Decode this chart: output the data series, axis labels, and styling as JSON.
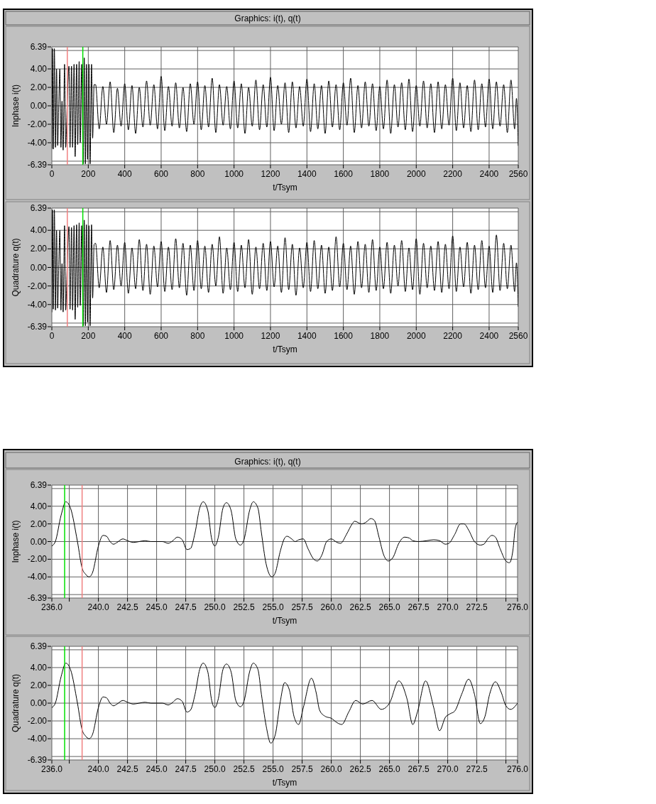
{
  "chart_data": [
    {
      "type": "line",
      "title": "Graphics: i(t), q(t)",
      "xlabel": "t/Tsym",
      "ylabel": "Inphase i(t)",
      "grid": true,
      "xlim": [
        0,
        2560
      ],
      "xticks": [
        0,
        200,
        400,
        600,
        800,
        1000,
        1200,
        1400,
        1600,
        1800,
        2000,
        2200,
        2400,
        2560
      ],
      "ylim": [
        -6.39,
        6.39
      ],
      "yticks": [
        {
          "value": -6.39,
          "label": "-6.39"
        },
        {
          "value": -6,
          "label": null
        },
        {
          "value": -4,
          "label": "-4.00"
        },
        {
          "value": -2,
          "label": "-2.00"
        },
        {
          "value": 0,
          "label": "0.00"
        },
        {
          "value": 2,
          "label": "2.00"
        },
        {
          "value": 4,
          "label": "4.00"
        },
        {
          "value": 6,
          "label": null
        },
        {
          "value": 6.39,
          "label": "6.39"
        }
      ],
      "ref_lines": [
        {
          "axis": "x",
          "value": 85,
          "color": "#f08080"
        },
        {
          "axis": "x",
          "value": 170,
          "color": "#00e000"
        }
      ],
      "x": [
        0,
        4,
        8,
        14,
        20,
        26,
        32,
        38,
        44,
        50,
        56,
        62,
        70,
        76,
        84,
        88,
        94,
        100,
        108,
        114,
        122,
        128,
        136,
        142,
        150,
        156,
        164,
        172,
        178,
        184,
        190,
        196,
        204,
        210,
        218,
        224,
        232,
        240,
        260,
        280,
        300,
        320,
        340,
        360,
        380,
        400,
        420,
        440,
        460,
        480,
        500,
        520,
        540,
        560,
        580,
        600,
        620,
        640,
        660,
        680,
        700,
        720,
        740,
        760,
        780,
        800,
        820,
        840,
        860,
        880,
        900,
        920,
        940,
        960,
        980,
        1000,
        1020,
        1040,
        1060,
        1080,
        1100,
        1120,
        1140,
        1160,
        1180,
        1200,
        1220,
        1240,
        1260,
        1280,
        1300,
        1320,
        1340,
        1360,
        1380,
        1400,
        1420,
        1440,
        1460,
        1480,
        1500,
        1520,
        1540,
        1560,
        1580,
        1600,
        1620,
        1640,
        1660,
        1680,
        1700,
        1720,
        1740,
        1760,
        1780,
        1800,
        1820,
        1840,
        1860,
        1880,
        1900,
        1920,
        1940,
        1960,
        1980,
        2000,
        2020,
        2040,
        2060,
        2080,
        2100,
        2120,
        2140,
        2160,
        2180,
        2200,
        2220,
        2240,
        2260,
        2280,
        2300,
        2320,
        2340,
        2360,
        2380,
        2400,
        2420,
        2440,
        2460,
        2480,
        2500,
        2520,
        2540,
        2550,
        2560
      ],
      "series": [
        {
          "color": "#000000",
          "values": [
            -4.6,
            6.2,
            -4.7,
            6.2,
            -4.5,
            4.0,
            -4.3,
            0.2,
            4.0,
            -4.5,
            0.5,
            -4.8,
            4.5,
            -4.5,
            0.0,
            null,
            4.3,
            -4.5,
            4.3,
            -4.5,
            4.5,
            -5.5,
            4.5,
            -4.2,
            4.8,
            -4.0,
            4.5,
            -6.3,
            5.2,
            -6.3,
            4.5,
            -5.8,
            4.5,
            -6.3,
            4.5,
            -3.5,
            2.3,
            2.3,
            -2.5,
            2.1,
            -2.0,
            2.6,
            -2.9,
            1.9,
            -2.2,
            2.4,
            -2.6,
            2.2,
            -3.0,
            2.0,
            -2.3,
            2.7,
            -2.1,
            2.3,
            -2.5,
            3.2,
            -2.7,
            2.1,
            -2.2,
            2.5,
            -2.4,
            2.0,
            -2.8,
            2.4,
            -2.0,
            2.6,
            -2.6,
            2.2,
            -2.3,
            3.0,
            -2.9,
            2.3,
            -2.1,
            2.1,
            -2.5,
            2.7,
            -2.4,
            2.4,
            -3.0,
            2.0,
            -2.2,
            2.8,
            -2.6,
            2.3,
            -2.3,
            3.1,
            -2.7,
            2.2,
            -2.0,
            2.5,
            -2.9,
            2.6,
            -2.4,
            2.1,
            -2.2,
            2.9,
            -2.8,
            2.4,
            -2.5,
            2.2,
            -3.0,
            2.7,
            -2.3,
            2.3,
            -2.6,
            2.5,
            -2.1,
            3.0,
            -2.9,
            2.2,
            -2.4,
            2.6,
            -2.2,
            2.4,
            -2.7,
            2.1,
            -2.5,
            2.8,
            -3.0,
            2.3,
            -2.3,
            2.5,
            -2.6,
            2.9,
            -2.8,
            2.2,
            -2.2,
            2.7,
            -2.4,
            2.4,
            -2.9,
            2.6,
            -2.5,
            2.3,
            -2.1,
            3.0,
            -2.7,
            2.5,
            -2.4,
            2.2,
            -2.8,
            2.8,
            -2.6,
            2.4,
            -2.3,
            2.9,
            -2.5,
            2.6,
            -2.2,
            2.3,
            -2.9,
            2.8,
            -2.5,
            0.8,
            -4.3
          ]
        }
      ]
    },
    {
      "type": "line",
      "xlabel": "t/Tsym",
      "ylabel": "Quadrature q(t)",
      "grid": true,
      "xlim": [
        0,
        2560
      ],
      "xticks": [
        0,
        200,
        400,
        600,
        800,
        1000,
        1200,
        1400,
        1600,
        1800,
        2000,
        2200,
        2400,
        2560
      ],
      "ylim": [
        -6.39,
        6.39
      ],
      "yticks": [
        {
          "value": -6.39,
          "label": "-6.39"
        },
        {
          "value": -6,
          "label": null
        },
        {
          "value": -4,
          "label": "-4.00"
        },
        {
          "value": -2,
          "label": "-2.00"
        },
        {
          "value": 0,
          "label": "0.00"
        },
        {
          "value": 2,
          "label": "2.00"
        },
        {
          "value": 4,
          "label": "4.00"
        },
        {
          "value": 6,
          "label": null
        },
        {
          "value": 6.39,
          "label": "6.39"
        }
      ],
      "ref_lines": [
        {
          "axis": "x",
          "value": 85,
          "color": "#f08080"
        },
        {
          "axis": "x",
          "value": 170,
          "color": "#00e000"
        }
      ],
      "x": [
        0,
        4,
        8,
        14,
        20,
        26,
        32,
        38,
        44,
        50,
        56,
        62,
        70,
        76,
        84,
        88,
        94,
        100,
        108,
        114,
        122,
        128,
        136,
        142,
        150,
        156,
        164,
        172,
        178,
        184,
        190,
        196,
        204,
        210,
        218,
        224,
        232,
        240,
        260,
        280,
        300,
        320,
        340,
        360,
        380,
        400,
        420,
        440,
        460,
        480,
        500,
        520,
        540,
        560,
        580,
        600,
        620,
        640,
        660,
        680,
        700,
        720,
        740,
        760,
        780,
        800,
        820,
        840,
        860,
        880,
        900,
        920,
        940,
        960,
        980,
        1000,
        1020,
        1040,
        1060,
        1080,
        1100,
        1120,
        1140,
        1160,
        1180,
        1200,
        1220,
        1240,
        1260,
        1280,
        1300,
        1320,
        1340,
        1360,
        1380,
        1400,
        1420,
        1440,
        1460,
        1480,
        1500,
        1520,
        1540,
        1560,
        1580,
        1600,
        1620,
        1640,
        1660,
        1680,
        1700,
        1720,
        1740,
        1760,
        1780,
        1800,
        1820,
        1840,
        1860,
        1880,
        1900,
        1920,
        1940,
        1960,
        1980,
        2000,
        2020,
        2040,
        2060,
        2080,
        2100,
        2120,
        2140,
        2160,
        2180,
        2200,
        2220,
        2240,
        2260,
        2280,
        2300,
        2320,
        2340,
        2360,
        2380,
        2400,
        2420,
        2440,
        2460,
        2480,
        2500,
        2520,
        2540,
        2550,
        2560
      ],
      "series": [
        {
          "color": "#000000",
          "values": [
            -4.8,
            6.2,
            -4.5,
            6.2,
            -4.6,
            4.0,
            -4.4,
            0.3,
            4.0,
            -4.6,
            0.4,
            -4.8,
            4.5,
            -4.6,
            0.0,
            null,
            4.4,
            -4.5,
            4.3,
            -4.6,
            4.5,
            -5.6,
            4.6,
            -4.3,
            4.8,
            -4.1,
            4.5,
            -6.3,
            5.1,
            -6.3,
            4.6,
            -5.9,
            4.5,
            -6.3,
            4.6,
            -3.3,
            2.5,
            2.6,
            -2.2,
            2.2,
            -2.7,
            2.9,
            -2.4,
            2.4,
            -2.0,
            2.7,
            -2.8,
            2.1,
            -2.3,
            3.0,
            -2.5,
            2.5,
            -2.9,
            2.3,
            -2.1,
            2.8,
            -2.6,
            2.2,
            -2.4,
            3.1,
            -2.2,
            2.6,
            -3.0,
            2.4,
            -2.5,
            2.9,
            -2.3,
            2.3,
            -2.7,
            2.5,
            -2.0,
            3.3,
            -2.8,
            2.1,
            -2.4,
            2.7,
            -2.6,
            2.4,
            -2.2,
            3.0,
            -2.9,
            2.2,
            -2.3,
            2.6,
            -2.5,
            2.8,
            -2.1,
            2.3,
            -2.7,
            3.2,
            -2.4,
            2.5,
            -3.0,
            2.1,
            -2.2,
            2.7,
            -2.6,
            2.9,
            -2.3,
            2.4,
            -2.8,
            2.2,
            -2.5,
            3.3,
            -2.1,
            2.6,
            -2.4,
            2.3,
            -2.9,
            2.8,
            -2.2,
            2.5,
            -2.7,
            3.0,
            -2.5,
            2.2,
            -2.3,
            2.7,
            -2.8,
            2.4,
            -2.0,
            2.9,
            -2.6,
            2.1,
            -2.4,
            3.1,
            -2.9,
            2.6,
            -2.2,
            2.3,
            -2.5,
            2.8,
            -2.7,
            2.5,
            -2.3,
            3.4,
            -2.6,
            2.2,
            -2.1,
            2.7,
            -2.8,
            2.4,
            -2.4,
            2.9,
            -2.2,
            2.3,
            -2.7,
            3.5,
            -2.5,
            2.6,
            -2.3,
            2.4,
            -2.6,
            0.5,
            -4.2
          ]
        }
      ]
    },
    {
      "type": "line",
      "title": "Graphics: i(t), q(t)",
      "xlabel": "t/Tsym",
      "ylabel": "Inphase i(t)",
      "grid": true,
      "xlim": [
        236,
        276
      ],
      "xticks": [
        {
          "value": 236,
          "label": "236.0"
        },
        {
          "value": 237.5,
          "label": null
        },
        {
          "value": 240,
          "label": "240.0"
        },
        {
          "value": 242.5,
          "label": "242.5"
        },
        {
          "value": 245,
          "label": "245.0"
        },
        {
          "value": 247.5,
          "label": "247.5"
        },
        {
          "value": 250,
          "label": "250.0"
        },
        {
          "value": 252.5,
          "label": "252.5"
        },
        {
          "value": 255,
          "label": "255.0"
        },
        {
          "value": 257.5,
          "label": "257.5"
        },
        {
          "value": 260,
          "label": "260.0"
        },
        {
          "value": 262.5,
          "label": "262.5"
        },
        {
          "value": 265,
          "label": "265.0"
        },
        {
          "value": 267.5,
          "label": "267.5"
        },
        {
          "value": 270,
          "label": "270.0"
        },
        {
          "value": 272.5,
          "label": "272.5"
        },
        {
          "value": 275,
          "label": null
        },
        {
          "value": 276,
          "label": "276.0"
        }
      ],
      "ylim": [
        -6.39,
        6.39
      ],
      "yticks": [
        {
          "value": -6.39,
          "label": "-6.39"
        },
        {
          "value": -6,
          "label": null
        },
        {
          "value": -4,
          "label": "-4.00"
        },
        {
          "value": -2,
          "label": "-2.00"
        },
        {
          "value": 0,
          "label": "0.00"
        },
        {
          "value": 2,
          "label": "2.00"
        },
        {
          "value": 4,
          "label": "4.00"
        },
        {
          "value": 6,
          "label": null
        },
        {
          "value": 6.39,
          "label": "6.39"
        }
      ],
      "ref_lines": [
        {
          "axis": "x",
          "value": 237.1,
          "color": "#00e000"
        },
        {
          "axis": "x",
          "value": 238.6,
          "color": "#f08080"
        }
      ],
      "x": [
        236.0,
        236.3,
        236.8,
        237.2,
        237.6,
        238.2,
        238.6,
        238.9,
        239.2,
        239.5,
        240.0,
        240.4,
        240.7,
        241.0,
        241.3,
        241.6,
        242.1,
        242.5,
        243.0,
        243.5,
        244.0,
        244.5,
        245.0,
        245.5,
        246.0,
        246.3,
        246.8,
        247.2,
        247.6,
        247.9,
        248.3,
        248.7,
        249.0,
        249.4,
        249.7,
        250.0,
        250.3,
        250.7,
        251.0,
        251.4,
        251.8,
        252.2,
        252.5,
        253.0,
        253.3,
        253.7,
        254.0,
        254.4,
        254.9,
        255.2,
        255.6,
        256.0,
        256.2,
        256.6,
        256.9,
        257.2,
        257.6,
        258.0,
        258.5,
        258.8,
        259.2,
        259.6,
        260.0,
        260.5,
        260.8,
        261.3,
        261.8,
        262.0,
        262.6,
        263.0,
        263.4,
        263.7,
        264.1,
        264.5,
        264.9,
        265.3,
        265.8,
        266.3,
        266.7,
        267.0,
        267.5,
        268.2,
        268.8,
        269.3,
        269.8,
        270.1,
        270.6,
        271.1,
        271.4,
        271.8,
        272.3,
        272.8,
        273.1,
        273.5,
        273.8,
        274.1,
        274.5,
        275.0,
        275.3,
        275.6,
        275.8,
        276.0
      ],
      "series": [
        {
          "color": "#000000",
          "values": [
            -0.5,
            0.0,
            3.0,
            4.5,
            3.8,
            0.0,
            -3.0,
            -3.7,
            -4.0,
            -3.5,
            -0.5,
            0.7,
            0.6,
            0.0,
            -0.3,
            -0.1,
            0.3,
            0.1,
            -0.1,
            0.0,
            0.1,
            0.0,
            0.0,
            0.0,
            -0.2,
            0.0,
            0.5,
            0.2,
            -0.9,
            -0.8,
            1.0,
            3.8,
            4.5,
            3.5,
            0.5,
            -0.5,
            0.5,
            3.8,
            4.4,
            3.5,
            0.3,
            -0.4,
            0.2,
            3.6,
            4.5,
            3.8,
            1.0,
            -2.5,
            -4.0,
            -3.5,
            -1.2,
            0.4,
            0.6,
            0.3,
            0.0,
            0.2,
            0.3,
            -0.8,
            -2.0,
            -2.2,
            -1.5,
            0.0,
            0.3,
            -0.1,
            -0.2,
            0.8,
            2.0,
            2.3,
            2.0,
            2.2,
            2.6,
            2.4,
            0.5,
            -1.5,
            -2.2,
            -1.8,
            -0.2,
            0.5,
            0.4,
            0.1,
            0.0,
            0.1,
            0.2,
            0.1,
            -0.3,
            -0.2,
            0.8,
            2.0,
            2.0,
            1.3,
            0.0,
            -0.4,
            -0.3,
            0.4,
            0.7,
            0.5,
            -0.8,
            -2.2,
            -2.4,
            -1.0,
            1.5,
            2.2
          ]
        }
      ]
    },
    {
      "type": "line",
      "xlabel": "t/Tsym",
      "ylabel": "Quadrature q(t)",
      "grid": true,
      "xlim": [
        236,
        276
      ],
      "xticks": [
        {
          "value": 236,
          "label": "236.0"
        },
        {
          "value": 237.5,
          "label": null
        },
        {
          "value": 240,
          "label": "240.0"
        },
        {
          "value": 242.5,
          "label": "242.5"
        },
        {
          "value": 245,
          "label": "245.0"
        },
        {
          "value": 247.5,
          "label": "247.5"
        },
        {
          "value": 250,
          "label": "250.0"
        },
        {
          "value": 252.5,
          "label": "252.5"
        },
        {
          "value": 255,
          "label": "255.0"
        },
        {
          "value": 257.5,
          "label": "257.5"
        },
        {
          "value": 260,
          "label": "260.0"
        },
        {
          "value": 262.5,
          "label": "262.5"
        },
        {
          "value": 265,
          "label": "265.0"
        },
        {
          "value": 267.5,
          "label": "267.5"
        },
        {
          "value": 270,
          "label": "270.0"
        },
        {
          "value": 272.5,
          "label": "272.5"
        },
        {
          "value": 275,
          "label": null
        },
        {
          "value": 276,
          "label": "276.0"
        }
      ],
      "ylim": [
        -6.39,
        6.39
      ],
      "yticks": [
        {
          "value": -6.39,
          "label": "-6.39"
        },
        {
          "value": -6,
          "label": null
        },
        {
          "value": -4,
          "label": "-4.00"
        },
        {
          "value": -2,
          "label": "-2.00"
        },
        {
          "value": 0,
          "label": "0.00"
        },
        {
          "value": 2,
          "label": "2.00"
        },
        {
          "value": 4,
          "label": "4.00"
        },
        {
          "value": 6,
          "label": null
        },
        {
          "value": 6.39,
          "label": "6.39"
        }
      ],
      "ref_lines": [
        {
          "axis": "x",
          "value": 237.1,
          "color": "#00e000"
        },
        {
          "axis": "x",
          "value": 238.6,
          "color": "#f08080"
        }
      ],
      "x": [
        236.0,
        236.3,
        236.8,
        237.2,
        237.6,
        238.2,
        238.6,
        238.9,
        239.2,
        239.5,
        240.0,
        240.4,
        240.7,
        241.0,
        241.3,
        241.6,
        242.1,
        242.5,
        243.0,
        243.5,
        244.0,
        244.5,
        245.0,
        245.5,
        246.0,
        246.3,
        246.8,
        247.2,
        247.6,
        247.9,
        248.3,
        248.7,
        249.0,
        249.4,
        249.7,
        250.0,
        250.3,
        250.7,
        251.0,
        251.4,
        251.8,
        252.2,
        252.5,
        253.0,
        253.3,
        253.7,
        254.0,
        254.4,
        254.8,
        255.2,
        255.6,
        256.0,
        256.4,
        256.8,
        257.2,
        257.6,
        258.3,
        258.7,
        259.0,
        259.5,
        260.0,
        260.5,
        260.9,
        261.5,
        262.1,
        262.7,
        263.5,
        264.3,
        265.0,
        265.8,
        266.5,
        267.0,
        267.4,
        268.1,
        268.8,
        269.3,
        269.8,
        270.2,
        270.6,
        271.2,
        271.8,
        272.3,
        272.8,
        273.2,
        273.6,
        274.1,
        274.6,
        275.0,
        275.4,
        276.0
      ],
      "series": [
        {
          "color": "#000000",
          "values": [
            -0.5,
            0.0,
            3.0,
            4.5,
            3.8,
            0.0,
            -3.0,
            -3.7,
            -4.0,
            -3.5,
            -0.5,
            0.7,
            0.6,
            0.0,
            -0.3,
            -0.1,
            0.3,
            0.1,
            -0.1,
            0.0,
            0.1,
            0.0,
            0.0,
            0.0,
            -0.2,
            0.0,
            0.5,
            0.2,
            -1.0,
            -0.8,
            1.0,
            3.8,
            4.5,
            3.5,
            0.5,
            -0.5,
            0.5,
            3.8,
            4.4,
            3.5,
            0.3,
            -0.4,
            0.2,
            3.6,
            4.5,
            3.8,
            1.0,
            -2.5,
            -4.5,
            -3.5,
            0.0,
            2.3,
            1.5,
            -1.5,
            -2.4,
            -0.5,
            2.8,
            1.2,
            -0.8,
            -1.5,
            -1.7,
            -2.2,
            -2.4,
            -1.0,
            0.3,
            -0.1,
            0.3,
            -0.7,
            0.0,
            2.5,
            0.5,
            -2.4,
            -1.0,
            2.5,
            -0.5,
            -3.1,
            -1.6,
            -1.2,
            -0.9,
            1.0,
            2.7,
            1.0,
            -2.3,
            -1.5,
            1.0,
            2.4,
            1.2,
            -0.3,
            -0.7,
            0.0
          ]
        }
      ]
    }
  ]
}
